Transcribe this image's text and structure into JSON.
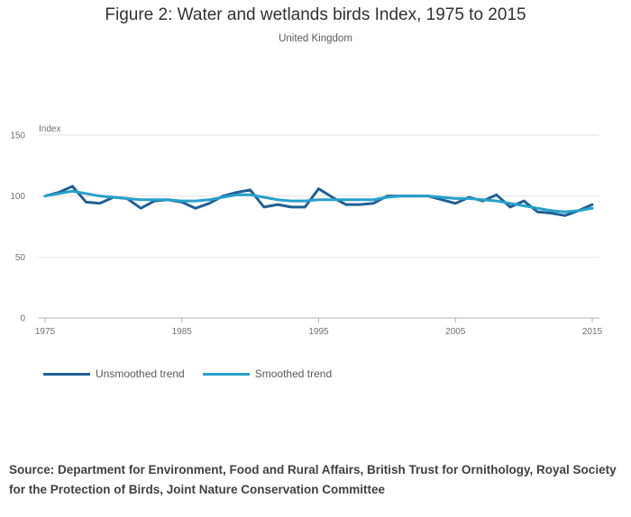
{
  "chart_data": {
    "type": "line",
    "title": "Figure 2: Water and wetlands birds Index, 1975 to 2015",
    "subtitle": "United Kingdom",
    "ylabel": "Index",
    "xlabel": "",
    "ylim": [
      0,
      150
    ],
    "xlim": [
      1975,
      2015
    ],
    "y_ticks": [
      0,
      50,
      100,
      150
    ],
    "x_ticks": [
      1975,
      1985,
      1995,
      2005,
      2015
    ],
    "grid": true,
    "legend_position": "bottom-left",
    "x": [
      1975,
      1976,
      1977,
      1978,
      1979,
      1980,
      1981,
      1982,
      1983,
      1984,
      1985,
      1986,
      1987,
      1988,
      1989,
      1990,
      1991,
      1992,
      1993,
      1994,
      1995,
      1996,
      1997,
      1998,
      1999,
      2000,
      2001,
      2002,
      2003,
      2004,
      2005,
      2006,
      2007,
      2008,
      2009,
      2010,
      2011,
      2012,
      2013,
      2014,
      2015
    ],
    "series": [
      {
        "name": "Unsmoothed trend",
        "color": "#206095",
        "values": [
          100,
          103,
          108,
          95,
          94,
          99,
          98,
          90,
          96,
          97,
          95,
          90,
          94,
          100,
          103,
          105,
          91,
          93,
          91,
          91,
          106,
          99,
          93,
          93,
          94,
          100,
          100,
          100,
          100,
          97,
          94,
          99,
          96,
          101,
          91,
          96,
          87,
          86,
          84,
          88,
          93
        ]
      },
      {
        "name": "Smoothed trend",
        "color": "#27a0cc",
        "values": [
          100,
          102,
          104,
          102,
          100,
          99,
          98,
          97,
          97,
          97,
          96,
          96,
          97,
          99,
          101,
          101,
          99,
          97,
          96,
          96,
          97,
          97,
          97,
          97,
          97,
          99,
          100,
          100,
          100,
          99,
          98,
          98,
          97,
          96,
          94,
          92,
          90,
          88,
          87,
          88,
          90
        ]
      }
    ]
  },
  "source": "Source: Department for Environment, Food and Rural Affairs, British Trust for Ornithology, Royal Society for the Protection of Birds, Joint Nature Conservation Committee"
}
